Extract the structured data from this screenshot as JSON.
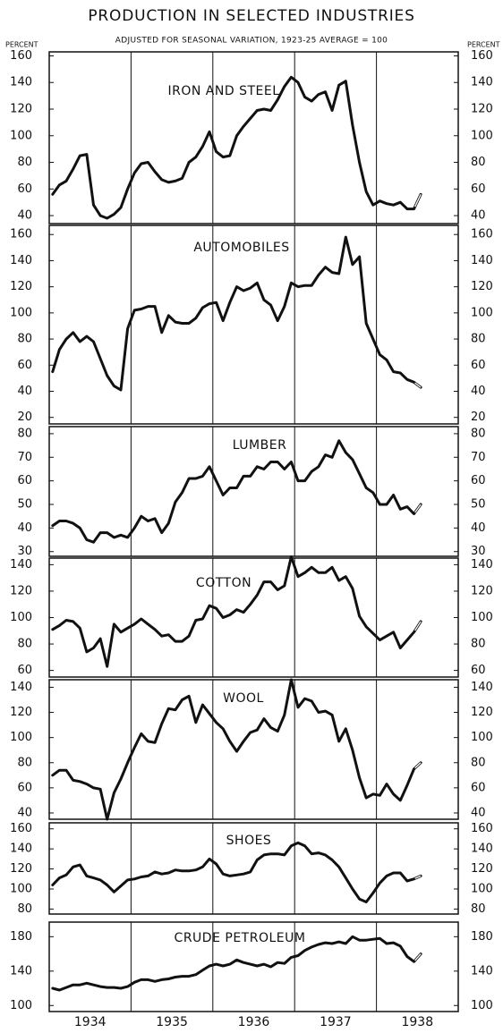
{
  "title": "PRODUCTION IN SELECTED INDUSTRIES",
  "subtitle": "ADJUSTED FOR SEASONAL VARIATION, 1923-25 AVERAGE = 100",
  "y_label": "PERCENT",
  "years": [
    1934,
    1935,
    1936,
    1937,
    1938
  ],
  "chart_data": [
    {
      "type": "line",
      "title": "IRON AND STEEL",
      "color": "#111111",
      "hollow_last": true,
      "values": [
        56,
        63,
        66,
        75,
        85,
        86,
        48,
        40,
        38,
        41,
        46,
        60,
        72,
        79,
        80,
        73,
        67,
        65,
        66,
        68,
        80,
        84,
        92,
        103,
        88,
        84,
        85,
        100,
        107,
        113,
        119,
        120,
        119,
        127,
        137,
        144,
        140,
        129,
        126,
        131,
        133,
        119,
        138,
        141,
        108,
        80,
        58,
        48,
        51,
        49,
        48,
        50,
        45,
        45,
        56
      ],
      "ylim": [
        34,
        163
      ],
      "yticks": [
        40,
        60,
        80,
        100,
        120,
        140,
        160
      ]
    },
    {
      "type": "line",
      "title": "AUTOMOBILES",
      "color": "#111111",
      "hollow_last": true,
      "values": [
        55,
        72,
        80,
        85,
        78,
        82,
        78,
        65,
        52,
        44,
        41,
        88,
        102,
        103,
        105,
        105,
        85,
        98,
        93,
        92,
        92,
        96,
        104,
        107,
        108,
        94,
        108,
        120,
        117,
        119,
        123,
        110,
        106,
        94,
        105,
        123,
        120,
        121,
        121,
        129,
        135,
        131,
        130,
        158,
        137,
        143,
        92,
        80,
        68,
        64,
        55,
        54,
        49,
        47,
        43
      ],
      "ylim": [
        15,
        167
      ],
      "yticks": [
        20,
        40,
        60,
        80,
        100,
        120,
        140,
        160
      ]
    },
    {
      "type": "line",
      "title": "LUMBER",
      "color": "#111111",
      "hollow_last": true,
      "values": [
        41,
        43,
        43,
        42,
        40,
        35,
        34,
        38,
        38,
        36,
        37,
        36,
        40,
        45,
        43,
        44,
        38,
        42,
        51,
        55,
        61,
        61,
        62,
        66,
        60,
        54,
        57,
        57,
        62,
        62,
        66,
        65,
        68,
        68,
        65,
        68,
        60,
        60,
        64,
        66,
        71,
        70,
        77,
        72,
        69,
        63,
        57,
        55,
        50,
        50,
        54,
        48,
        49,
        46,
        50
      ],
      "ylim": [
        28,
        83
      ],
      "yticks": [
        30,
        40,
        50,
        60,
        70,
        80
      ]
    },
    {
      "type": "line",
      "title": "COTTON",
      "color": "#111111",
      "hollow_last": true,
      "values": [
        91,
        94,
        98,
        97,
        92,
        74,
        77,
        84,
        63,
        95,
        89,
        92,
        95,
        99,
        95,
        91,
        86,
        87,
        82,
        82,
        86,
        98,
        99,
        109,
        107,
        100,
        102,
        106,
        104,
        110,
        117,
        127,
        127,
        121,
        124,
        146,
        131,
        134,
        138,
        134,
        134,
        138,
        128,
        131,
        122,
        101,
        93,
        88,
        83,
        86,
        89,
        77,
        83,
        89,
        97
      ],
      "ylim": [
        55,
        145
      ],
      "yticks": [
        60,
        80,
        100,
        120,
        140
      ]
    },
    {
      "type": "line",
      "title": "WOOL",
      "color": "#111111",
      "hollow_last": true,
      "values": [
        70,
        74,
        74,
        66,
        65,
        63,
        60,
        59,
        35,
        56,
        67,
        80,
        92,
        103,
        97,
        96,
        111,
        123,
        122,
        130,
        133,
        112,
        126,
        119,
        112,
        107,
        97,
        89,
        97,
        104,
        106,
        115,
        108,
        105,
        118,
        146,
        124,
        131,
        129,
        120,
        121,
        118,
        97,
        107,
        90,
        68,
        52,
        55,
        54,
        63,
        55,
        50,
        62,
        75,
        80
      ],
      "ylim": [
        35,
        146
      ],
      "yticks": [
        40,
        60,
        80,
        100,
        120,
        140
      ]
    },
    {
      "type": "line",
      "title": "SHOES",
      "color": "#111111",
      "hollow_last": true,
      "values": [
        104,
        111,
        114,
        122,
        124,
        113,
        111,
        109,
        104,
        97,
        103,
        109,
        110,
        112,
        113,
        117,
        115,
        116,
        119,
        118,
        118,
        119,
        122,
        130,
        125,
        115,
        113,
        114,
        115,
        117,
        129,
        134,
        135,
        135,
        134,
        143,
        146,
        143,
        135,
        136,
        134,
        129,
        122,
        111,
        100,
        90,
        87,
        96,
        106,
        113,
        116,
        116,
        108,
        110,
        113
      ],
      "ylim": [
        75,
        166
      ],
      "yticks": [
        80,
        100,
        120,
        140,
        160
      ]
    },
    {
      "type": "line",
      "title": "CRUDE PETROLEUM",
      "color": "#111111",
      "hollow_last": true,
      "values": [
        120,
        118,
        121,
        124,
        124,
        126,
        124,
        122,
        121,
        121,
        120,
        122,
        127,
        130,
        130,
        128,
        130,
        131,
        133,
        134,
        134,
        136,
        141,
        146,
        148,
        146,
        148,
        153,
        150,
        148,
        146,
        148,
        145,
        150,
        149,
        156,
        158,
        164,
        168,
        171,
        173,
        172,
        174,
        172,
        180,
        176,
        176,
        177,
        178,
        172,
        173,
        169,
        157,
        151,
        160
      ],
      "ylim": [
        93,
        197
      ],
      "yticks": [
        100,
        140,
        180
      ]
    }
  ]
}
